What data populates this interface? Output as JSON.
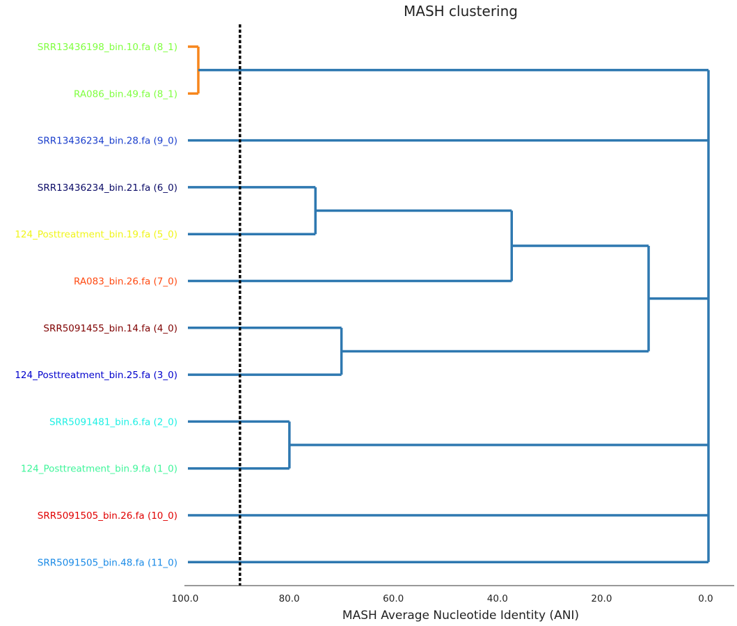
{
  "chart_data": {
    "type": "dendrogram",
    "title": "MASH clustering",
    "xlabel": "MASH Average Nucleotide Identity (ANI)",
    "xlim": [
      100.0,
      0.0
    ],
    "x_ticks": [
      "100.0",
      "80.0",
      "60.0",
      "40.0",
      "20.0",
      "0.0"
    ],
    "x_tick_values": [
      100,
      80,
      60,
      40,
      20,
      0
    ],
    "threshold": 90.0,
    "threshold_color": "#000000",
    "branch_color": "#2e78b0",
    "cluster_color": "#f7861c",
    "leaves": [
      {
        "label": "SRR13436198_bin.10.fa (8_1)",
        "color": "#7fff3f"
      },
      {
        "label": "RA086_bin.49.fa (8_1)",
        "color": "#7fff3f"
      },
      {
        "label": "SRR13436234_bin.28.fa (9_0)",
        "color": "#1a3ecc"
      },
      {
        "label": "SRR13436234_bin.21.fa (6_0)",
        "color": "#0a0a66"
      },
      {
        "label": "124_Posttreatment_bin.19.fa (5_0)",
        "color": "#f0f51a"
      },
      {
        "label": "RA083_bin.26.fa (7_0)",
        "color": "#ff4a12"
      },
      {
        "label": "SRR5091455_bin.14.fa (4_0)",
        "color": "#7f0000"
      },
      {
        "label": "124_Posttreatment_bin.25.fa (3_0)",
        "color": "#0000cc"
      },
      {
        "label": "SRR5091481_bin.6.fa (2_0)",
        "color": "#1ef0e4"
      },
      {
        "label": "124_Posttreatment_bin.9.fa (1_0)",
        "color": "#3ff59a"
      },
      {
        "label": "SRR5091505_bin.26.fa (10_0)",
        "color": "#e00000"
      },
      {
        "label": "SRR5091505_bin.48.fa (11_0)",
        "color": "#1a8ae6"
      }
    ],
    "merges": [
      {
        "id": "m1",
        "children": [
          "L0",
          "L1"
        ],
        "ani": 98.0,
        "color": "cluster"
      },
      {
        "id": "m2",
        "children": [
          "L3",
          "L4"
        ],
        "ani": 75.5,
        "color": "branch"
      },
      {
        "id": "m3",
        "children": [
          "m2",
          "L5"
        ],
        "ani": 37.8,
        "color": "branch"
      },
      {
        "id": "m4",
        "children": [
          "L6",
          "L7"
        ],
        "ani": 70.5,
        "color": "branch"
      },
      {
        "id": "m5",
        "children": [
          "m3",
          "m4"
        ],
        "ani": 11.5,
        "color": "branch"
      },
      {
        "id": "m6",
        "children": [
          "L8",
          "L9"
        ],
        "ani": 80.5,
        "color": "branch"
      },
      {
        "id": "m7",
        "children": [
          "m1",
          "L2",
          "m5",
          "m6",
          "L10",
          "L11"
        ],
        "ani": 0.0,
        "color": "branch"
      }
    ]
  }
}
